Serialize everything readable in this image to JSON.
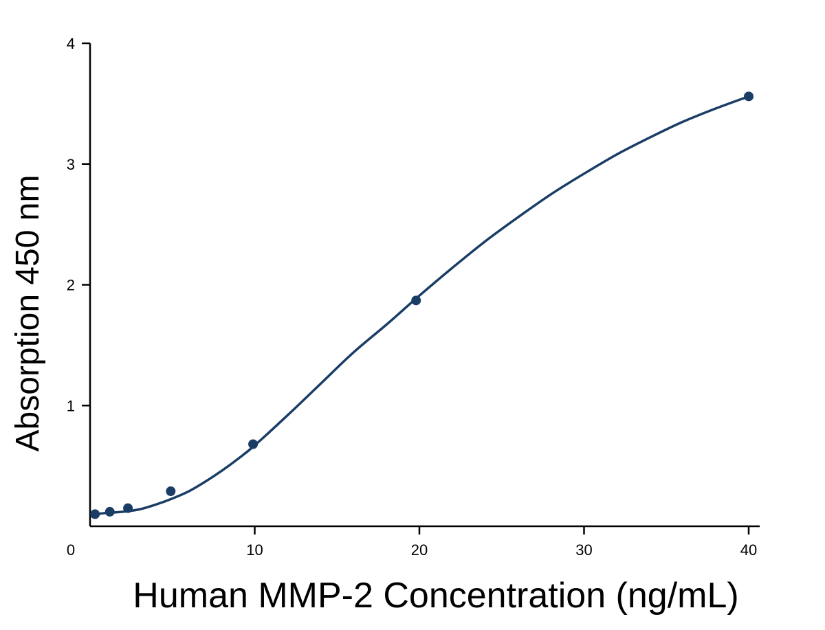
{
  "chart_data": {
    "type": "line",
    "title": "",
    "xlabel": "Human MMP-2 Concentration (ng/mL)",
    "ylabel": "Absorption 450 nm",
    "xlim": [
      0,
      40
    ],
    "ylim": [
      0,
      4
    ],
    "x_ticks": [
      0,
      10,
      20,
      30,
      40
    ],
    "y_ticks": [
      1,
      2,
      3,
      4
    ],
    "x_tick_labels": [
      "0",
      "10",
      "20",
      "30",
      "40"
    ],
    "y_tick_labels": [
      "1",
      "2",
      "3",
      "4"
    ],
    "grid": false,
    "legend": "none",
    "series": [
      {
        "style": "points",
        "color": "#1a3d66",
        "x": [
          0.3,
          1.2,
          2.3,
          4.9,
          9.9,
          19.8,
          40.0
        ],
        "y": [
          0.1,
          0.12,
          0.15,
          0.29,
          0.68,
          1.87,
          3.56
        ]
      },
      {
        "style": "fitted-curve",
        "color": "#1a3d66",
        "x": [
          0.3,
          1.0,
          2.0,
          3.0,
          4.0,
          5.0,
          6.0,
          7.0,
          8.0,
          9.0,
          10.0,
          12.0,
          14.0,
          16.0,
          18.0,
          20.0,
          22.0,
          24.0,
          26.0,
          28.0,
          30.0,
          32.0,
          34.0,
          36.0,
          38.0,
          40.0
        ],
        "y": [
          0.1,
          0.11,
          0.12,
          0.14,
          0.18,
          0.23,
          0.29,
          0.37,
          0.46,
          0.56,
          0.67,
          0.92,
          1.18,
          1.44,
          1.67,
          1.91,
          2.14,
          2.36,
          2.56,
          2.75,
          2.92,
          3.08,
          3.22,
          3.35,
          3.46,
          3.56
        ]
      }
    ]
  }
}
